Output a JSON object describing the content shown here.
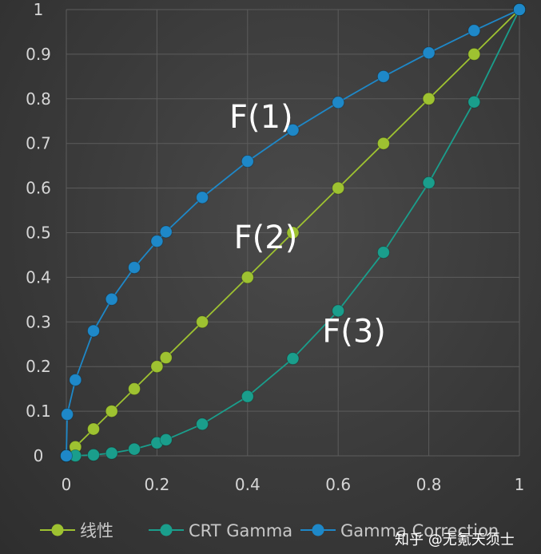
{
  "chart_data": {
    "type": "line",
    "title": "",
    "xlabel": "",
    "ylabel": "",
    "xlim": [
      0,
      1
    ],
    "ylim": [
      0,
      1
    ],
    "grid": true,
    "legend_position": "bottom",
    "x_ticks": [
      "0",
      "0.2",
      "0.4",
      "0.6",
      "0.8",
      "1"
    ],
    "y_ticks": [
      "0",
      "0.1",
      "0.2",
      "0.3",
      "0.4",
      "0.5",
      "0.6",
      "0.7",
      "0.8",
      "0.9",
      "1"
    ],
    "series": [
      {
        "name": "线性",
        "color": "#9ec231",
        "points": [
          [
            0,
            0
          ],
          [
            0.02,
            0.02
          ],
          [
            0.06,
            0.06
          ],
          [
            0.1,
            0.1
          ],
          [
            0.15,
            0.15
          ],
          [
            0.2,
            0.2
          ],
          [
            0.22,
            0.22
          ],
          [
            0.3,
            0.3
          ],
          [
            0.4,
            0.4
          ],
          [
            0.5,
            0.5
          ],
          [
            0.6,
            0.6
          ],
          [
            0.7,
            0.7
          ],
          [
            0.8,
            0.8
          ],
          [
            0.9,
            0.9
          ],
          [
            1,
            1
          ]
        ]
      },
      {
        "name": "CRT Gamma",
        "color": "#1a9e8c",
        "points": [
          [
            0,
            0
          ],
          [
            0.02,
            0.0002
          ],
          [
            0.06,
            0.002
          ],
          [
            0.1,
            0.006
          ],
          [
            0.15,
            0.015
          ],
          [
            0.2,
            0.029
          ],
          [
            0.22,
            0.036
          ],
          [
            0.3,
            0.071
          ],
          [
            0.4,
            0.133
          ],
          [
            0.5,
            0.218
          ],
          [
            0.6,
            0.325
          ],
          [
            0.7,
            0.456
          ],
          [
            0.8,
            0.612
          ],
          [
            0.9,
            0.793
          ],
          [
            1,
            1
          ]
        ]
      },
      {
        "name": "Gamma Correction",
        "color": "#1e88c8",
        "points": [
          [
            0,
            0
          ],
          [
            0.002,
            0.093
          ],
          [
            0.02,
            0.17
          ],
          [
            0.06,
            0.28
          ],
          [
            0.1,
            0.351
          ],
          [
            0.15,
            0.422
          ],
          [
            0.2,
            0.481
          ],
          [
            0.22,
            0.502
          ],
          [
            0.3,
            0.579
          ],
          [
            0.4,
            0.66
          ],
          [
            0.5,
            0.73
          ],
          [
            0.6,
            0.792
          ],
          [
            0.7,
            0.85
          ],
          [
            0.8,
            0.903
          ],
          [
            0.9,
            0.953
          ],
          [
            1,
            1
          ]
        ]
      }
    ],
    "annotations": [
      {
        "text": "F(1)",
        "x": 0.43,
        "y": 0.735
      },
      {
        "text": "F(2)",
        "x": 0.44,
        "y": 0.465
      },
      {
        "text": "F(3)",
        "x": 0.635,
        "y": 0.255
      }
    ]
  },
  "watermark": {
    "text": "知乎 @无氪天须士"
  }
}
